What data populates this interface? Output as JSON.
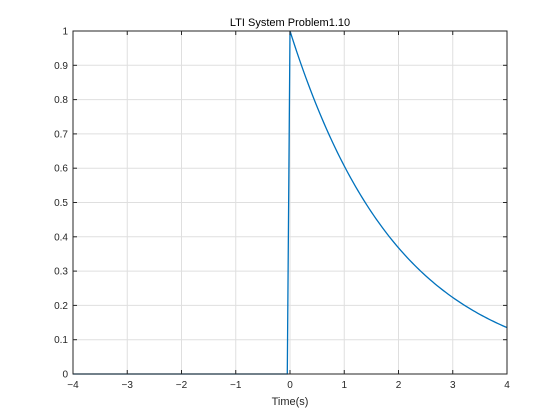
{
  "chart_data": {
    "type": "line",
    "title": "LTI System Problem1.10",
    "xlabel": "Time(s)",
    "ylabel": "",
    "xlim": [
      -4,
      4
    ],
    "ylim": [
      0,
      1
    ],
    "xticks": [
      -4,
      -3,
      -2,
      -1,
      0,
      1,
      2,
      3,
      4
    ],
    "yticks": [
      0,
      0.1,
      0.2,
      0.3,
      0.4,
      0.5,
      0.6,
      0.7,
      0.8,
      0.9,
      1
    ],
    "xtick_labels": [
      "−4",
      "−3",
      "−2",
      "−1",
      "0",
      "1",
      "2",
      "3",
      "4"
    ],
    "ytick_labels": [
      "0",
      "0.1",
      "0.2",
      "0.3",
      "0.4",
      "0.5",
      "0.6",
      "0.7",
      "0.8",
      "0.9",
      "1"
    ],
    "grid": true,
    "legend": "none",
    "series": [
      {
        "color": "#0072bd",
        "x": [
          -4,
          -0.05,
          0,
          0.25,
          0.5,
          0.75,
          1,
          1.25,
          1.5,
          1.75,
          2,
          2.25,
          2.5,
          2.75,
          3,
          3.25,
          3.5,
          3.75,
          4
        ],
        "y": [
          0,
          0,
          1,
          0.8825,
          0.7788,
          0.6873,
          0.6065,
          0.5353,
          0.4724,
          0.4169,
          0.3679,
          0.3247,
          0.2865,
          0.2528,
          0.2231,
          0.1969,
          0.1738,
          0.1534,
          0.1353
        ]
      }
    ]
  }
}
